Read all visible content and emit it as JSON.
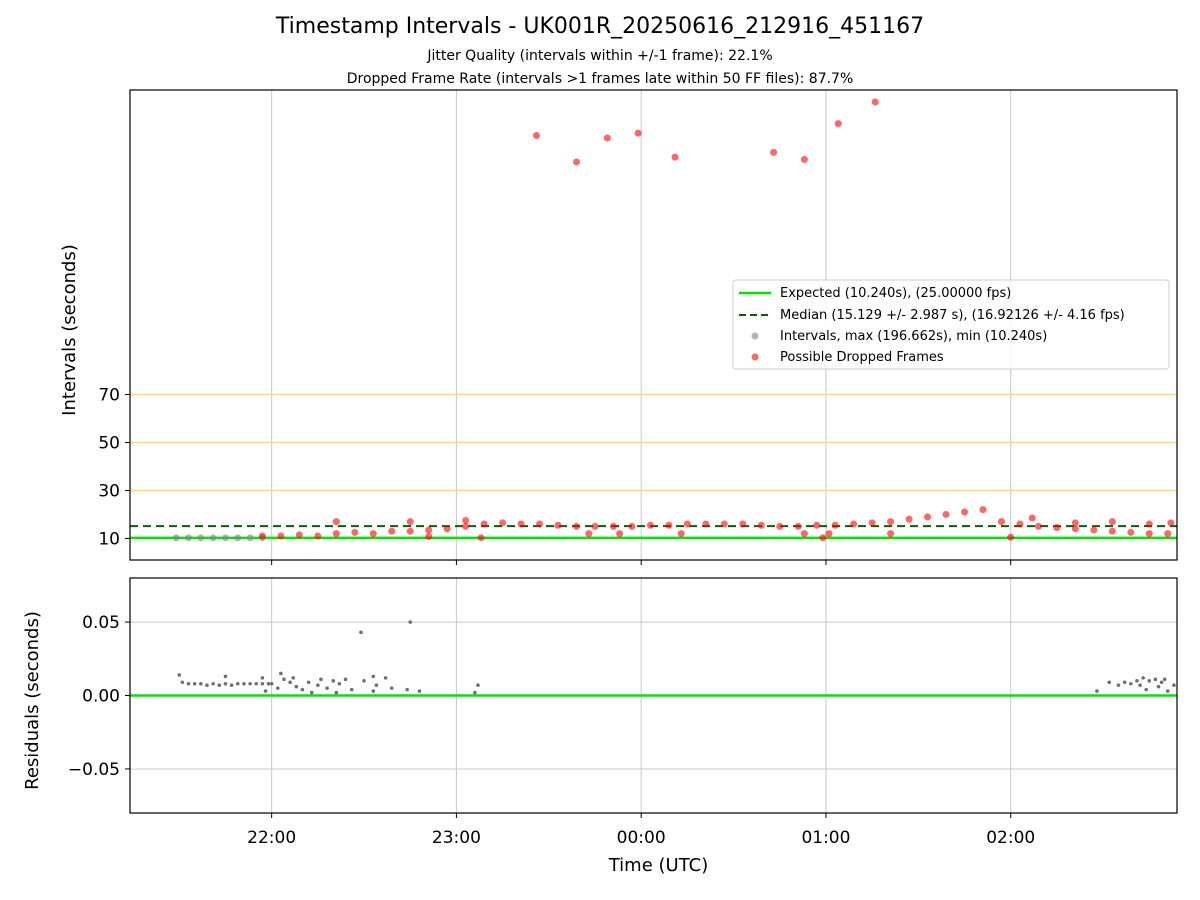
{
  "title": "Timestamp Intervals - UK001R_20250616_212916_451167",
  "subtitle1": "Jitter Quality (intervals within +/-1 frame): 22.1%",
  "subtitle2": "Dropped Frame Rate (intervals >1 frames late within 50 FF files): 87.7%",
  "colors": {
    "expected": "#00e600",
    "median": "#006400",
    "dropped": "#ff0000",
    "intervals": "#808080",
    "threshold": "#ffd966",
    "grid": "#c8c8c8"
  },
  "chart_data": [
    {
      "type": "scatter",
      "xlabel": "",
      "ylabel": "Intervals (seconds)",
      "x_axis": "time",
      "xlim": [
        "21:14",
        "02:54"
      ],
      "x_ticks": [
        "22:00",
        "23:00",
        "00:00",
        "01:00",
        "02:00"
      ],
      "y_ticks": [
        10,
        30,
        50,
        70
      ],
      "ylim": [
        1,
        197
      ],
      "horizontal_lines": [
        {
          "name": "Expected (10.240s), (25.00000 fps)",
          "y": 10.24,
          "style": "solid"
        },
        {
          "name": "Median (15.129 +/- 2.987 s), (16.92126 +/- 4.16 fps)",
          "y": 15.129,
          "style": "dashed"
        },
        {
          "name": "",
          "y": 30,
          "style": "threshold"
        },
        {
          "name": "",
          "y": 50,
          "style": "threshold"
        },
        {
          "name": "",
          "y": 70,
          "style": "threshold"
        }
      ],
      "legend_position": "center-right",
      "series": [
        {
          "name": "Intervals, max (196.662s), min (10.240s)",
          "points": [
            [
              "21:29",
              10.25
            ],
            [
              "21:33",
              10.25
            ],
            [
              "21:37",
              10.25
            ],
            [
              "21:41",
              10.25
            ],
            [
              "21:45",
              10.25
            ],
            [
              "21:49",
              10.25
            ],
            [
              "21:53",
              10.25
            ],
            [
              "21:57",
              10.25
            ]
          ]
        },
        {
          "name": "Possible Dropped Frames",
          "points": [
            [
              "23:26",
              178
            ],
            [
              "23:39",
              167
            ],
            [
              "23:49",
              177
            ],
            [
              "23:59",
              179
            ],
            [
              "00:11",
              169
            ],
            [
              "00:43",
              171
            ],
            [
              "00:53",
              168
            ],
            [
              "01:04",
              183
            ],
            [
              "01:16",
              192
            ],
            [
              "21:57",
              11
            ],
            [
              "22:03",
              11
            ],
            [
              "22:09",
              11.5
            ],
            [
              "22:15",
              11
            ],
            [
              "22:21",
              12
            ],
            [
              "22:27",
              12.5
            ],
            [
              "22:33",
              12
            ],
            [
              "22:39",
              13
            ],
            [
              "22:45",
              13
            ],
            [
              "22:51",
              13.5
            ],
            [
              "22:57",
              14
            ],
            [
              "23:03",
              15
            ],
            [
              "23:09",
              16
            ],
            [
              "23:15",
              16.5
            ],
            [
              "23:21",
              16
            ],
            [
              "23:27",
              16
            ],
            [
              "23:33",
              15.5
            ],
            [
              "23:39",
              15
            ],
            [
              "23:45",
              15
            ],
            [
              "23:51",
              15
            ],
            [
              "23:57",
              15
            ],
            [
              "00:03",
              15.5
            ],
            [
              "00:09",
              15.5
            ],
            [
              "00:15",
              16
            ],
            [
              "00:21",
              16
            ],
            [
              "00:27",
              16
            ],
            [
              "00:33",
              16
            ],
            [
              "00:39",
              15.5
            ],
            [
              "00:45",
              15
            ],
            [
              "00:51",
              15
            ],
            [
              "00:57",
              15.5
            ],
            [
              "01:03",
              15.5
            ],
            [
              "01:09",
              16
            ],
            [
              "01:15",
              16.5
            ],
            [
              "01:21",
              17
            ],
            [
              "01:27",
              18
            ],
            [
              "01:33",
              19
            ],
            [
              "01:39",
              20
            ],
            [
              "01:45",
              21
            ],
            [
              "01:51",
              22
            ],
            [
              "01:57",
              17
            ],
            [
              "02:03",
              16
            ],
            [
              "02:09",
              15
            ],
            [
              "02:15",
              14.5
            ],
            [
              "02:21",
              14
            ],
            [
              "02:27",
              13.5
            ],
            [
              "02:33",
              13
            ],
            [
              "02:39",
              12.5
            ],
            [
              "02:45",
              12
            ],
            [
              "02:51",
              12
            ],
            [
              "22:21",
              17
            ],
            [
              "22:45",
              17
            ],
            [
              "23:03",
              17.5
            ],
            [
              "23:08",
              10.3
            ],
            [
              "22:51",
              10.8
            ],
            [
              "23:43",
              12
            ],
            [
              "23:53",
              12
            ],
            [
              "00:13",
              12
            ],
            [
              "00:53",
              12
            ],
            [
              "00:59",
              10.3
            ],
            [
              "01:01",
              12
            ],
            [
              "01:21",
              12
            ],
            [
              "02:00",
              10.5
            ],
            [
              "02:07",
              18.5
            ],
            [
              "02:21",
              16.5
            ],
            [
              "02:33",
              17
            ],
            [
              "02:45",
              16
            ],
            [
              "02:52",
              16.5
            ]
          ]
        }
      ]
    },
    {
      "type": "scatter",
      "xlabel": "Time (UTC)",
      "ylabel": "Residuals (seconds)",
      "x_axis": "time",
      "xlim": [
        "21:14",
        "02:54"
      ],
      "x_ticks": [
        "22:00",
        "23:00",
        "00:00",
        "01:00",
        "02:00"
      ],
      "y_ticks": [
        "−0.05",
        "0.00",
        "0.05"
      ],
      "ylim": [
        -0.08,
        0.08
      ],
      "horizontal_lines": [
        {
          "name": "",
          "y": 0,
          "style": "solid"
        }
      ],
      "series": [
        {
          "name": "",
          "points": [
            [
              "21:30",
              0.014
            ],
            [
              "21:31",
              0.009
            ],
            [
              "21:33",
              0.008
            ],
            [
              "21:35",
              0.008
            ],
            [
              "21:37",
              0.008
            ],
            [
              "21:39",
              0.007
            ],
            [
              "21:41",
              0.008
            ],
            [
              "21:43",
              0.007
            ],
            [
              "21:45",
              0.008
            ],
            [
              "21:47",
              0.007
            ],
            [
              "21:49",
              0.008
            ],
            [
              "21:51",
              0.008
            ],
            [
              "21:53",
              0.008
            ],
            [
              "21:55",
              0.008
            ],
            [
              "21:57",
              0.008
            ],
            [
              "21:59",
              0.008
            ],
            [
              "21:45",
              0.013
            ],
            [
              "21:57",
              0.012
            ],
            [
              "21:58",
              0.003
            ],
            [
              "22:00",
              0.008
            ],
            [
              "22:02",
              0.005
            ],
            [
              "22:03",
              0.015
            ],
            [
              "22:04",
              0.011
            ],
            [
              "22:06",
              0.009
            ],
            [
              "22:07",
              0.012
            ],
            [
              "22:08",
              0.006
            ],
            [
              "22:10",
              0.004
            ],
            [
              "22:12",
              0.009
            ],
            [
              "22:13",
              0.002
            ],
            [
              "22:15",
              0.007
            ],
            [
              "22:16",
              0.011
            ],
            [
              "22:18",
              0.005
            ],
            [
              "22:20",
              0.01
            ],
            [
              "22:21",
              0.002
            ],
            [
              "22:22",
              0.008
            ],
            [
              "22:24",
              0.011
            ],
            [
              "22:26",
              0.004
            ],
            [
              "22:30",
              0.01
            ],
            [
              "22:33",
              0.003
            ],
            [
              "22:29",
              0.043
            ],
            [
              "22:33",
              0.013
            ],
            [
              "22:34",
              0.007
            ],
            [
              "22:37",
              0.012
            ],
            [
              "22:39",
              0.005
            ],
            [
              "22:44",
              0.004
            ],
            [
              "22:45",
              0.05
            ],
            [
              "22:48",
              0.003
            ],
            [
              "23:06",
              0.002
            ],
            [
              "23:07",
              0.007
            ],
            [
              "02:28",
              0.003
            ],
            [
              "02:32",
              0.009
            ],
            [
              "02:35",
              0.007
            ],
            [
              "02:37",
              0.009
            ],
            [
              "02:39",
              0.008
            ],
            [
              "02:41",
              0.01
            ],
            [
              "02:42",
              0.007
            ],
            [
              "02:43",
              0.012
            ],
            [
              "02:44",
              0.004
            ],
            [
              "02:45",
              0.01
            ],
            [
              "02:47",
              0.011
            ],
            [
              "02:48",
              0.006
            ],
            [
              "02:49",
              0.009
            ],
            [
              "02:50",
              0.011
            ],
            [
              "02:51",
              0.003
            ],
            [
              "02:53",
              0.007
            ]
          ]
        }
      ]
    }
  ]
}
